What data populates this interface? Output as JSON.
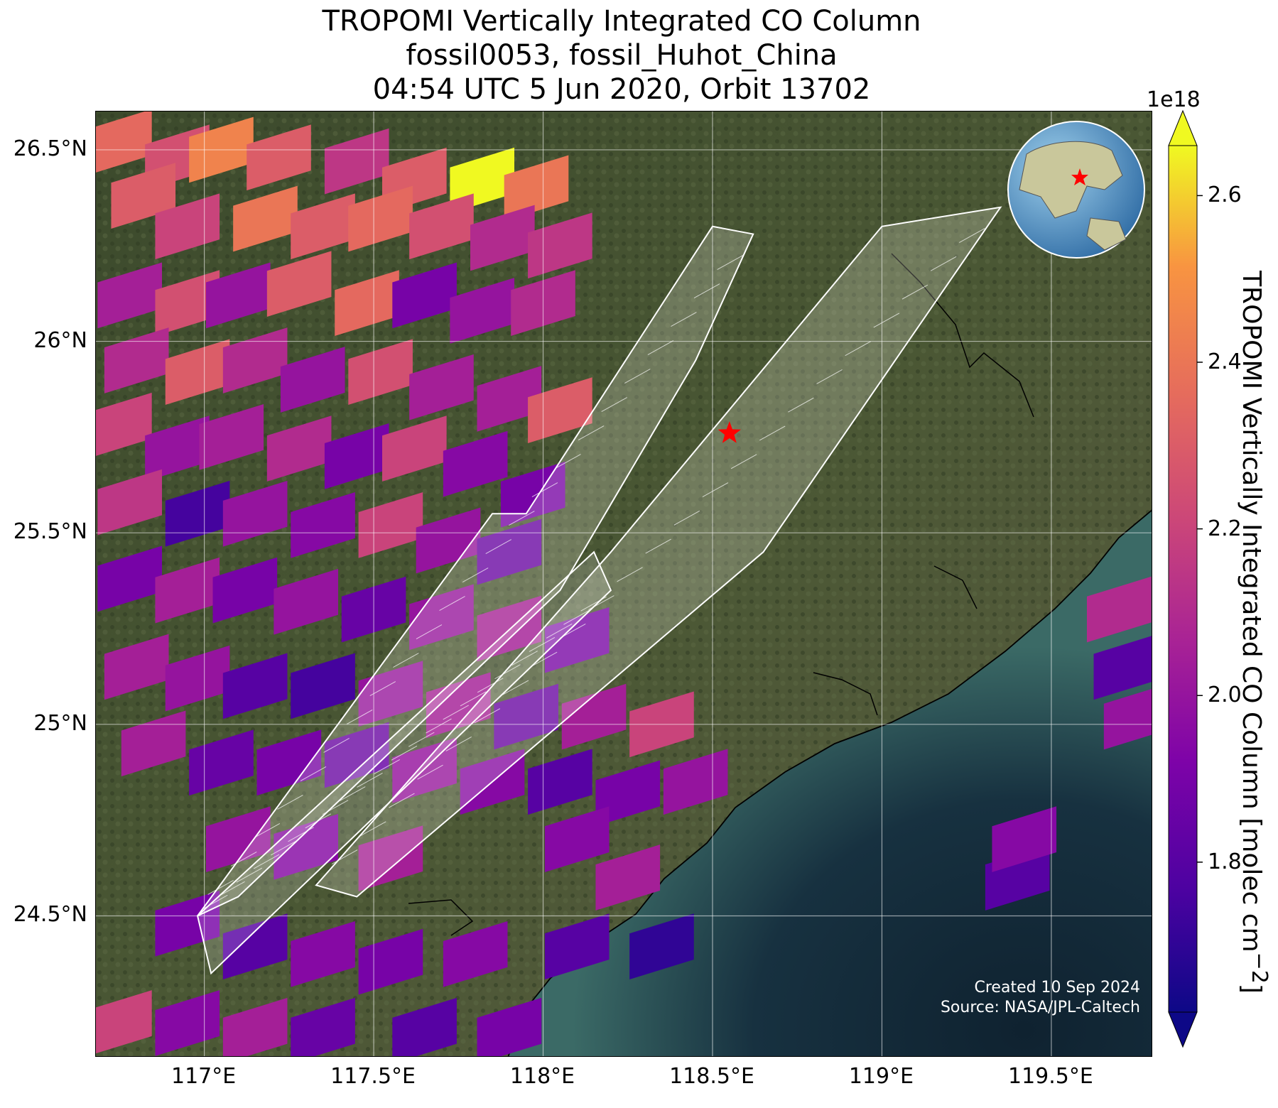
{
  "title": {
    "line1": "TROPOMI Vertically Integrated CO Column",
    "line2": "fossil0053, fossil_Huhot_China",
    "line3": "04:54 UTC 5 Jun 2020, Orbit 13702"
  },
  "map": {
    "lon_range": [
      116.68,
      119.8
    ],
    "lat_range": [
      24.13,
      26.6
    ],
    "lat_ticks": [
      {
        "value": 24.5,
        "label": "24.5°N"
      },
      {
        "value": 25.0,
        "label": "25°N"
      },
      {
        "value": 25.5,
        "label": "25.5°N"
      },
      {
        "value": 26.0,
        "label": "26°N"
      },
      {
        "value": 26.5,
        "label": "26.5°N"
      }
    ],
    "lon_ticks": [
      {
        "value": 117.0,
        "label": "117°E"
      },
      {
        "value": 117.5,
        "label": "117.5°E"
      },
      {
        "value": 118.0,
        "label": "118°E"
      },
      {
        "value": 118.5,
        "label": "118.5°E"
      },
      {
        "value": 119.0,
        "label": "119°E"
      },
      {
        "value": 119.5,
        "label": "119.5°E"
      }
    ],
    "gridlines": true,
    "basemap": "satellite imagery, land and sea",
    "site_marker": {
      "icon": "star-icon",
      "color": "#ff0000",
      "lon": 118.55,
      "lat": 25.76
    },
    "inset_globe": {
      "position": "top-right",
      "icon": "globe-icon",
      "marker_color": "#ff0000"
    },
    "credits": {
      "created": "Created 10 Sep 2024",
      "source": "Source: NASA/JPL-Caltech"
    }
  },
  "colorbar": {
    "label": "TROPOMI Vertically Integrated CO Column [molec cm",
    "label_sup": "−2",
    "label_end": "]",
    "exponent": "1e18",
    "colormap": "plasma",
    "range": [
      1.62,
      2.66
    ],
    "ticks": [
      {
        "value": 1.8,
        "label": "1.8"
      },
      {
        "value": 2.0,
        "label": "2.0"
      },
      {
        "value": 2.2,
        "label": "2.2"
      },
      {
        "value": 2.4,
        "label": "2.4"
      },
      {
        "value": 2.6,
        "label": "2.6"
      }
    ],
    "extend": "both"
  },
  "chart_data": {
    "type": "heatmap",
    "title": "TROPOMI Vertically Integrated CO Column",
    "value_unit": "1e18 molec cm-2",
    "pixels": [
      [
        116.75,
        26.52,
        2.35
      ],
      [
        116.92,
        26.48,
        2.25
      ],
      [
        117.05,
        26.5,
        2.45
      ],
      [
        117.22,
        26.48,
        2.3
      ],
      [
        117.45,
        26.47,
        2.15
      ],
      [
        117.62,
        26.42,
        2.3
      ],
      [
        117.82,
        26.42,
        2.66
      ],
      [
        117.98,
        26.4,
        2.4
      ],
      [
        116.82,
        26.38,
        2.3
      ],
      [
        116.95,
        26.3,
        2.2
      ],
      [
        117.18,
        26.32,
        2.4
      ],
      [
        117.35,
        26.3,
        2.3
      ],
      [
        117.52,
        26.32,
        2.35
      ],
      [
        117.7,
        26.3,
        2.25
      ],
      [
        117.88,
        26.27,
        2.1
      ],
      [
        118.05,
        26.25,
        2.15
      ],
      [
        116.78,
        26.12,
        2.05
      ],
      [
        116.95,
        26.1,
        2.25
      ],
      [
        117.1,
        26.12,
        2.0
      ],
      [
        117.28,
        26.15,
        2.3
      ],
      [
        117.48,
        26.1,
        2.35
      ],
      [
        117.65,
        26.12,
        1.9
      ],
      [
        117.82,
        26.08,
        2.0
      ],
      [
        118.0,
        26.1,
        2.1
      ],
      [
        116.8,
        25.95,
        2.1
      ],
      [
        116.98,
        25.92,
        2.3
      ],
      [
        117.15,
        25.95,
        2.1
      ],
      [
        117.32,
        25.9,
        2.0
      ],
      [
        117.52,
        25.92,
        2.25
      ],
      [
        117.7,
        25.88,
        2.05
      ],
      [
        117.9,
        25.85,
        2.05
      ],
      [
        118.05,
        25.82,
        2.3
      ],
      [
        116.75,
        25.78,
        2.2
      ],
      [
        116.92,
        25.72,
        2.0
      ],
      [
        117.08,
        25.75,
        2.05
      ],
      [
        117.28,
        25.72,
        2.1
      ],
      [
        117.45,
        25.7,
        1.9
      ],
      [
        117.62,
        25.72,
        2.2
      ],
      [
        117.8,
        25.68,
        1.95
      ],
      [
        117.97,
        25.6,
        1.9
      ],
      [
        116.78,
        25.58,
        2.15
      ],
      [
        116.98,
        25.55,
        1.75
      ],
      [
        117.15,
        25.55,
        2.0
      ],
      [
        117.35,
        25.52,
        1.95
      ],
      [
        117.55,
        25.52,
        2.2
      ],
      [
        117.72,
        25.48,
        2.0
      ],
      [
        117.9,
        25.45,
        1.85
      ],
      [
        116.78,
        25.38,
        1.9
      ],
      [
        116.95,
        25.35,
        2.05
      ],
      [
        117.12,
        25.35,
        1.9
      ],
      [
        117.3,
        25.32,
        2.0
      ],
      [
        117.5,
        25.3,
        1.85
      ],
      [
        117.7,
        25.28,
        2.0
      ],
      [
        117.9,
        25.25,
        2.05
      ],
      [
        118.1,
        25.22,
        1.9
      ],
      [
        116.8,
        25.15,
        2.05
      ],
      [
        116.98,
        25.12,
        2.0
      ],
      [
        117.15,
        25.1,
        1.8
      ],
      [
        117.35,
        25.1,
        1.75
      ],
      [
        117.55,
        25.08,
        2.0
      ],
      [
        117.75,
        25.05,
        2.05
      ],
      [
        117.95,
        25.02,
        1.85
      ],
      [
        118.15,
        25.02,
        2.05
      ],
      [
        118.35,
        25.0,
        2.2
      ],
      [
        116.85,
        24.95,
        2.05
      ],
      [
        117.05,
        24.9,
        1.85
      ],
      [
        117.25,
        24.9,
        1.9
      ],
      [
        117.45,
        24.92,
        1.85
      ],
      [
        117.65,
        24.88,
        2.0
      ],
      [
        117.85,
        24.85,
        1.95
      ],
      [
        118.05,
        24.85,
        1.8
      ],
      [
        118.25,
        24.82,
        1.9
      ],
      [
        118.45,
        24.85,
        2.0
      ],
      [
        117.1,
        24.7,
        2.0
      ],
      [
        117.3,
        24.68,
        1.95
      ],
      [
        117.55,
        24.65,
        2.05
      ],
      [
        118.1,
        24.7,
        1.95
      ],
      [
        118.25,
        24.6,
        2.05
      ],
      [
        116.95,
        24.48,
        1.9
      ],
      [
        117.15,
        24.42,
        1.8
      ],
      [
        117.35,
        24.4,
        1.95
      ],
      [
        117.55,
        24.38,
        1.9
      ],
      [
        117.8,
        24.4,
        1.95
      ],
      [
        118.1,
        24.42,
        1.8
      ],
      [
        118.35,
        24.42,
        1.7
      ],
      [
        116.75,
        24.22,
        2.2
      ],
      [
        116.95,
        24.22,
        1.95
      ],
      [
        117.15,
        24.2,
        2.05
      ],
      [
        117.35,
        24.2,
        1.85
      ],
      [
        117.65,
        24.2,
        1.8
      ],
      [
        117.9,
        24.2,
        1.9
      ],
      [
        119.4,
        24.6,
        1.8
      ],
      [
        119.42,
        24.7,
        1.95
      ],
      [
        119.7,
        25.3,
        2.1
      ],
      [
        119.72,
        25.15,
        1.8
      ],
      [
        119.75,
        25.02,
        2.0
      ]
    ],
    "swaths": [
      {
        "name": "",
        "corners": [
          [
            116.98,
            24.5
          ],
          [
            117.02,
            24.35
          ],
          [
            118.2,
            25.35
          ],
          [
            118.15,
            25.45
          ]
        ]
      },
      {
        "name": "",
        "corners": [
          [
            116.98,
            24.5
          ],
          [
            117.85,
            25.55
          ],
          [
            117.95,
            25.55
          ],
          [
            118.5,
            26.3
          ],
          [
            118.62,
            26.28
          ],
          [
            118.45,
            25.95
          ],
          [
            118.05,
            25.35
          ],
          [
            117.1,
            24.55
          ]
        ]
      },
      {
        "name": "",
        "corners": [
          [
            117.33,
            24.58
          ],
          [
            117.45,
            24.55
          ],
          [
            118.65,
            25.45
          ],
          [
            119.35,
            26.35
          ],
          [
            119.0,
            26.3
          ],
          [
            118.2,
            25.45
          ]
        ]
      }
    ]
  }
}
